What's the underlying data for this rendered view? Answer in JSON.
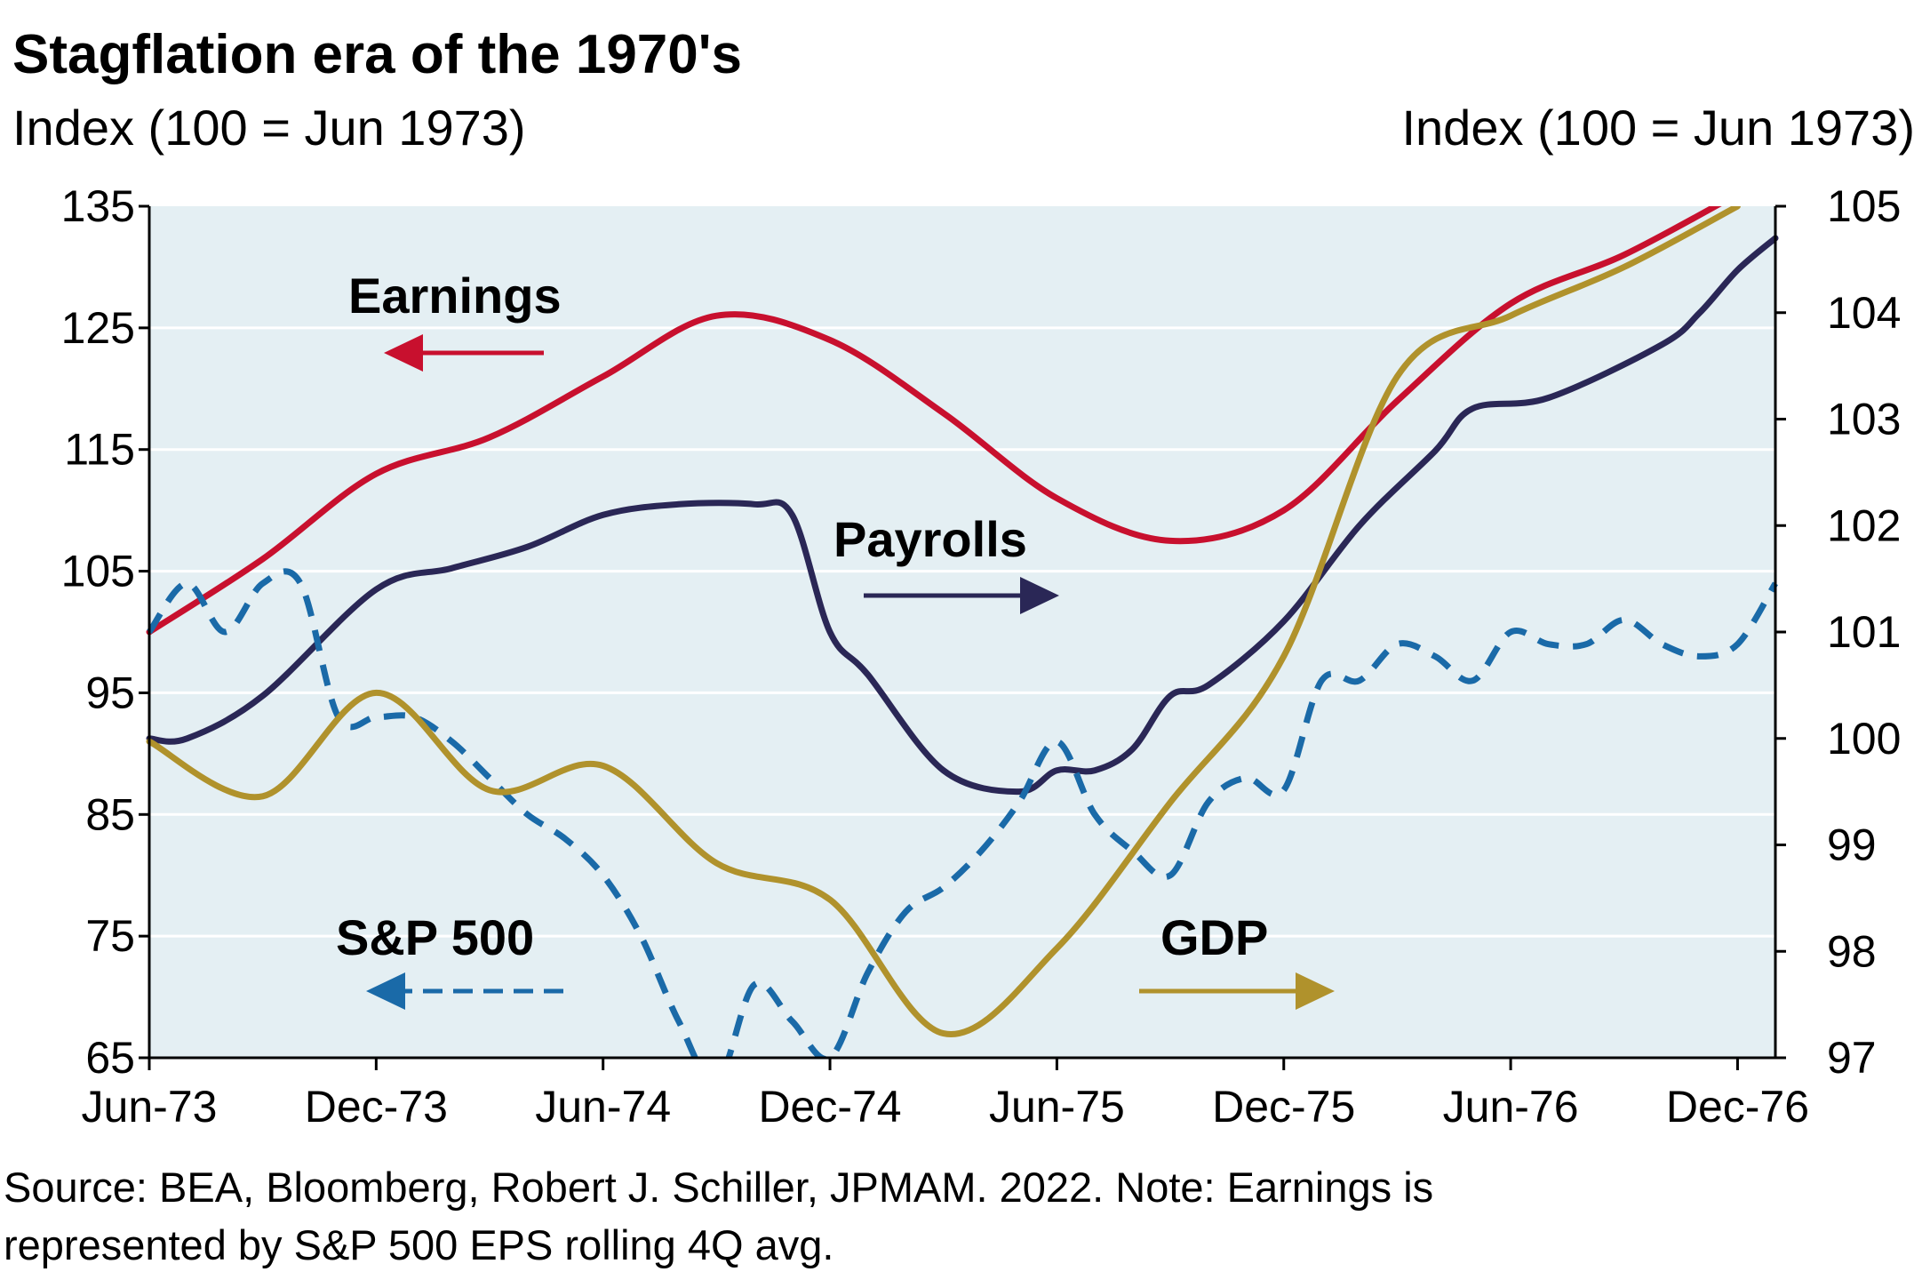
{
  "title": "Stagflation era of the 1970's",
  "left_axis_title": "Index (100 = Jun 1973)",
  "right_axis_title": "Index (100 = Jun 1973)",
  "source_line1": "Source: BEA, Bloomberg, Robert J. Schiller, JPMAM. 2022. Note: Earnings is",
  "source_line2": "represented by S&P 500 EPS rolling 4Q avg.",
  "colors": {
    "plot_bg": "#e4eff3",
    "grid": "#ffffff",
    "earnings": "#c8102e",
    "payrolls": "#2a2756",
    "sp500": "#1a6aa8",
    "gdp": "#b0922c"
  },
  "chart_data": {
    "type": "line",
    "x_label_months": [
      "Jun-73",
      "Dec-73",
      "Jun-74",
      "Dec-74",
      "Jun-75",
      "Dec-75",
      "Jun-76",
      "Dec-76"
    ],
    "x_range": [
      "Jun-73",
      "Jan-77"
    ],
    "y_left": {
      "min": 65,
      "max": 135,
      "ticks": [
        65,
        75,
        85,
        95,
        105,
        115,
        125,
        135
      ]
    },
    "y_right": {
      "min": 97,
      "max": 105,
      "ticks": [
        97,
        98,
        99,
        100,
        101,
        102,
        103,
        104,
        105
      ]
    },
    "grid": true,
    "series": [
      {
        "name": "Earnings",
        "axis": "left",
        "style": "solid",
        "color_key": "earnings",
        "label_arrow": "left",
        "points": [
          [
            "Jun-73",
            100
          ],
          [
            "Sep-73",
            106
          ],
          [
            "Dec-73",
            113
          ],
          [
            "Mar-74",
            116
          ],
          [
            "Jun-74",
            121
          ],
          [
            "Sep-74",
            126
          ],
          [
            "Dec-74",
            124
          ],
          [
            "Mar-75",
            118
          ],
          [
            "Jun-75",
            111
          ],
          [
            "Sep-75",
            107.5
          ],
          [
            "Dec-75",
            110
          ],
          [
            "Mar-76",
            119
          ],
          [
            "Jun-76",
            127
          ],
          [
            "Sep-76",
            131
          ],
          [
            "Dec-76",
            136
          ]
        ]
      },
      {
        "name": "Payrolls",
        "axis": "right",
        "style": "solid",
        "color_key": "payrolls",
        "label_arrow": "right",
        "points": [
          [
            "Jun-73",
            100
          ],
          [
            "Jul-73",
            100
          ],
          [
            "Sep-73",
            100.4
          ],
          [
            "Dec-73",
            101.4
          ],
          [
            "Feb-74",
            101.6
          ],
          [
            "Apr-74",
            101.8
          ],
          [
            "Jun-74",
            102.1
          ],
          [
            "Aug-74",
            102.2
          ],
          [
            "Oct-74",
            102.2
          ],
          [
            "Nov-74",
            102.1
          ],
          [
            "Dec-74",
            101.0
          ],
          [
            "Jan-75",
            100.6
          ],
          [
            "Mar-75",
            99.7
          ],
          [
            "May-75",
            99.5
          ],
          [
            "Jun-75",
            99.7
          ],
          [
            "Jul-75",
            99.7
          ],
          [
            "Aug-75",
            99.9
          ],
          [
            "Sep-75",
            100.4
          ],
          [
            "Oct-75",
            100.5
          ],
          [
            "Dec-75",
            101.1
          ],
          [
            "Feb-76",
            102.0
          ],
          [
            "Apr-76",
            102.7
          ],
          [
            "May-76",
            103.1
          ],
          [
            "Jul-76",
            103.2
          ],
          [
            "Oct-76",
            103.7
          ],
          [
            "Nov-76",
            104.0
          ],
          [
            "Dec-76",
            104.4
          ],
          [
            "Jan-77",
            104.7
          ]
        ]
      },
      {
        "name": "S&P 500",
        "axis": "left",
        "style": "dashed",
        "color_key": "sp500",
        "label_arrow": "left",
        "points": [
          [
            "Jun-73",
            100
          ],
          [
            "Jul-73",
            104
          ],
          [
            "Aug-73",
            100
          ],
          [
            "Sep-73",
            104
          ],
          [
            "Oct-73",
            104
          ],
          [
            "Nov-73",
            93
          ],
          [
            "Dec-73",
            93
          ],
          [
            "Jan-74",
            93
          ],
          [
            "Feb-74",
            91
          ],
          [
            "Mar-74",
            88
          ],
          [
            "Apr-74",
            85
          ],
          [
            "May-74",
            83
          ],
          [
            "Jun-74",
            80
          ],
          [
            "Jul-74",
            75
          ],
          [
            "Aug-74",
            68
          ],
          [
            "Sep-74",
            63
          ],
          [
            "Oct-74",
            71
          ],
          [
            "Nov-74",
            68
          ],
          [
            "Dec-74",
            65
          ],
          [
            "Jan-75",
            72
          ],
          [
            "Feb-75",
            77
          ],
          [
            "Mar-75",
            79
          ],
          [
            "Apr-75",
            82
          ],
          [
            "May-75",
            86
          ],
          [
            "Jun-75",
            91
          ],
          [
            "Jul-75",
            85
          ],
          [
            "Aug-75",
            82
          ],
          [
            "Sep-75",
            80
          ],
          [
            "Oct-75",
            86
          ],
          [
            "Nov-75",
            88
          ],
          [
            "Dec-75",
            87
          ],
          [
            "Jan-76",
            96
          ],
          [
            "Feb-76",
            96
          ],
          [
            "Mar-76",
            99
          ],
          [
            "Apr-76",
            98
          ],
          [
            "May-76",
            96
          ],
          [
            "Jun-76",
            100
          ],
          [
            "Jul-76",
            99
          ],
          [
            "Aug-76",
            99
          ],
          [
            "Sep-76",
            101
          ],
          [
            "Oct-76",
            99
          ],
          [
            "Nov-76",
            98
          ],
          [
            "Dec-76",
            99
          ],
          [
            "Jan-77",
            104
          ]
        ]
      },
      {
        "name": "GDP",
        "axis": "left",
        "style": "solid",
        "color_key": "gdp",
        "label_arrow": "right",
        "points": [
          [
            "Jun-73",
            91
          ],
          [
            "Sep-73",
            86.5
          ],
          [
            "Dec-73",
            95
          ],
          [
            "Mar-74",
            87
          ],
          [
            "Jun-74",
            89
          ],
          [
            "Sep-74",
            81
          ],
          [
            "Dec-74",
            78
          ],
          [
            "Mar-75",
            67
          ],
          [
            "Jun-75",
            74
          ],
          [
            "Sep-75",
            86
          ],
          [
            "Dec-75",
            98
          ],
          [
            "Mar-76",
            121
          ],
          [
            "Jun-76",
            126
          ],
          [
            "Sep-76",
            130
          ],
          [
            "Dec-76",
            135
          ]
        ]
      }
    ]
  }
}
